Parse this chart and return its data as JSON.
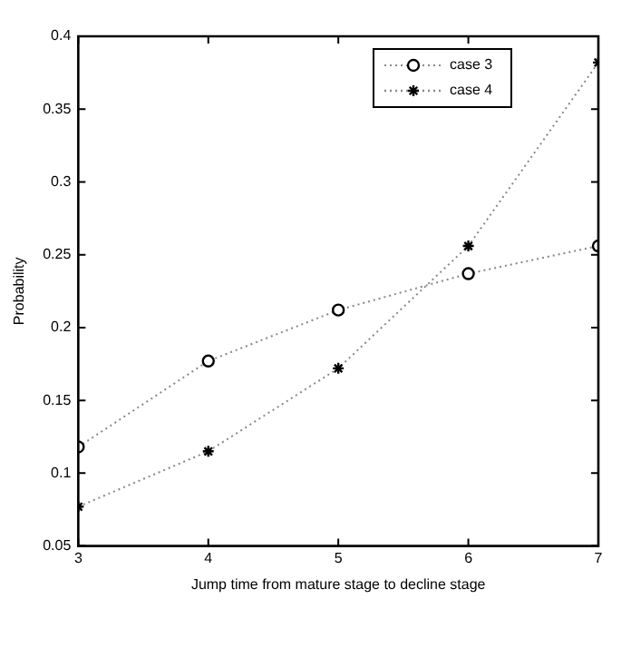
{
  "chart_data": {
    "type": "line",
    "xlabel": "Jump time from mature stage to decline stage",
    "ylabel": "Probability",
    "x": [
      3,
      4,
      5,
      6,
      7
    ],
    "series": [
      {
        "name": "case 3",
        "color": "#000000",
        "marker": "circle",
        "values": [
          0.118,
          0.177,
          0.212,
          0.237,
          0.256
        ]
      },
      {
        "name": "case 4",
        "color": "#000000",
        "marker": "cross",
        "values": [
          0.077,
          0.115,
          0.172,
          0.256,
          0.382
        ]
      }
    ],
    "xlim": [
      3,
      7
    ],
    "xticks": [
      3,
      4,
      5,
      6,
      7
    ],
    "ylim": [
      0.05,
      0.4
    ],
    "yticks": [
      0.05,
      0.1,
      0.15,
      0.2,
      0.25,
      0.3,
      0.35,
      0.4
    ],
    "grid": false,
    "legend": "top right",
    "line_style": "dotted"
  }
}
